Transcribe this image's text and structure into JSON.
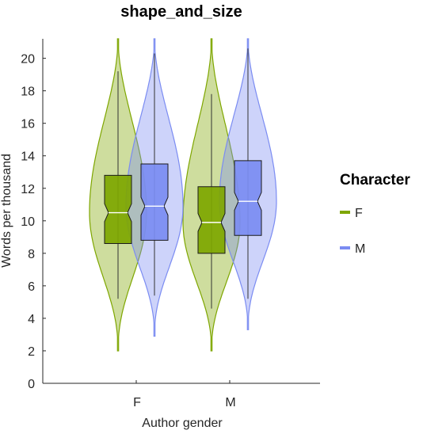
{
  "chart_data": {
    "type": "violin",
    "title": "shape_and_size",
    "xlabel": "Author gender",
    "ylabel": "Words per thousand",
    "ylim": [
      0,
      21.2
    ],
    "yticks": [
      0,
      2,
      4,
      6,
      8,
      10,
      12,
      14,
      16,
      18,
      20
    ],
    "categories": [
      "F",
      "M"
    ],
    "legend": {
      "title": "Character",
      "position": "right"
    },
    "series": [
      {
        "name": "F",
        "color": "#7ea600",
        "groups": [
          {
            "category": "F",
            "min": 2.0,
            "whisker_low": 5.2,
            "q1": 8.6,
            "median": 10.5,
            "q3": 12.8,
            "whisker_high": 19.2,
            "max": 21.2
          },
          {
            "category": "M",
            "min": 2.0,
            "whisker_low": 4.6,
            "q1": 8.0,
            "median": 9.9,
            "q3": 12.1,
            "whisker_high": 17.8,
            "max": 21.2
          }
        ]
      },
      {
        "name": "M",
        "color": "#7b8cf2",
        "groups": [
          {
            "category": "F",
            "min": 2.9,
            "whisker_low": 5.4,
            "q1": 8.8,
            "median": 10.9,
            "q3": 13.5,
            "whisker_high": 20.3,
            "max": 21.2
          },
          {
            "category": "M",
            "min": 3.3,
            "whisker_low": 5.2,
            "q1": 9.1,
            "median": 11.2,
            "q3": 13.7,
            "whisker_high": 20.6,
            "max": 21.2
          }
        ]
      }
    ]
  }
}
